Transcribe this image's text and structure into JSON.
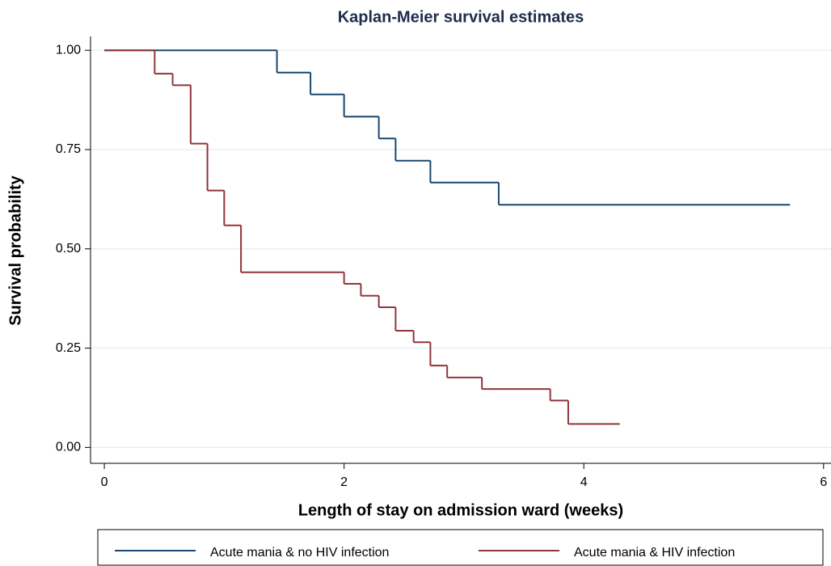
{
  "chart_data": {
    "type": "step",
    "title": "Kaplan-Meier survival estimates",
    "x_label": "Length of stay on admission ward (weeks)",
    "y_label": "Survival probability",
    "xlim": [
      -0.115,
      6.062
    ],
    "ylim": [
      -0.04,
      1.035
    ],
    "xticks": [
      0,
      2,
      4,
      6
    ],
    "yticks": [
      {
        "value": 0,
        "label": "0.00"
      },
      {
        "value": 0.25,
        "label": "0.25"
      },
      {
        "value": 0.5,
        "label": "0.50"
      },
      {
        "value": 0.75,
        "label": "0.75"
      },
      {
        "value": 1,
        "label": "1.00"
      }
    ],
    "grid": true,
    "legend": "bottom",
    "series": [
      {
        "name": "Acute mania & no HIV infection",
        "color": "#1a476f",
        "x": [
          0,
          1.44,
          1.72,
          2.0,
          2.29,
          2.43,
          2.72,
          3.29,
          5.72
        ],
        "values": [
          1,
          0.944,
          0.889,
          0.833,
          0.778,
          0.722,
          0.667,
          0.611,
          0.611
        ]
      },
      {
        "name": "Acute mania & HIV infection",
        "color": "#90353b",
        "x": [
          0,
          0.42,
          0.57,
          0.72,
          0.86,
          1.0,
          1.14,
          2.0,
          2.14,
          2.29,
          2.43,
          2.58,
          2.72,
          2.86,
          3.15,
          3.72,
          3.87,
          4.3
        ],
        "values": [
          1,
          0.941,
          0.912,
          0.765,
          0.647,
          0.559,
          0.441,
          0.412,
          0.382,
          0.353,
          0.294,
          0.265,
          0.206,
          0.176,
          0.147,
          0.118,
          0.059,
          0.059
        ]
      }
    ]
  }
}
